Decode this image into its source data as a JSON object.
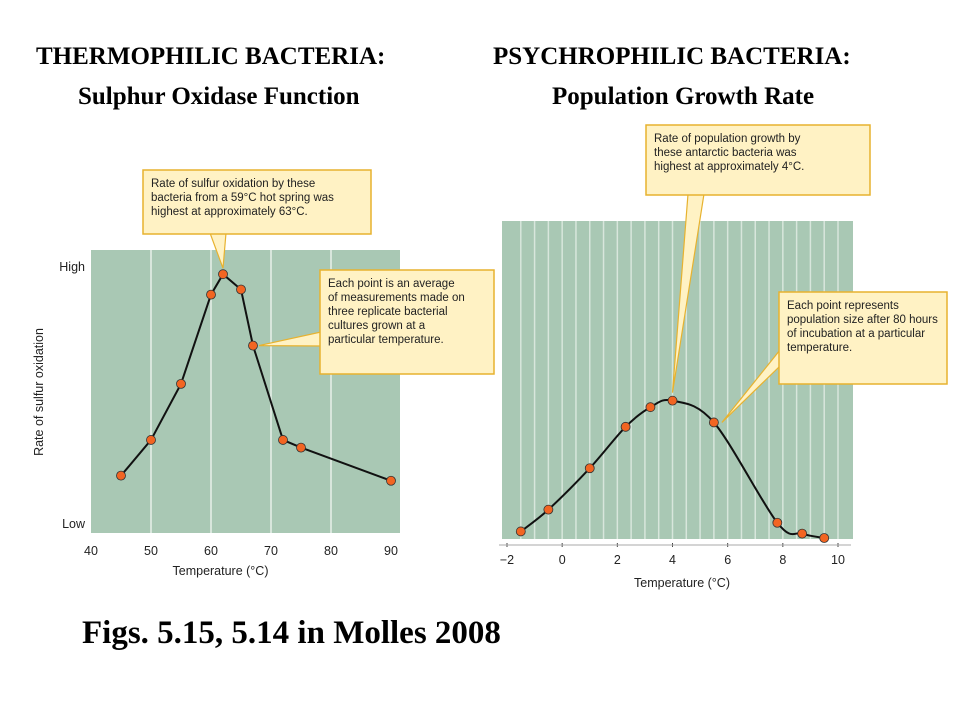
{
  "page": {
    "left_title_line1": "THERMOPHILIC BACTERIA:",
    "left_title_line2": "Sulphur Oxidase Function",
    "right_title_line1": "PSYCHROPHILIC BACTERIA:",
    "right_title_line2": "Population Growth Rate",
    "caption": "Figs. 5.15, 5.14 in Molles 2008"
  },
  "colors": {
    "plot_bg": "#a9c8b4",
    "grid": "#d8e6dc",
    "point_fill": "#f26522",
    "line": "#111111",
    "callout_bg": "#fff2c4",
    "callout_border": "#e7b22f"
  },
  "chart_data": [
    {
      "type": "line",
      "xlabel": "Temperature (°C)",
      "ylabel": "Rate of sulfur oxidation",
      "xlim": [
        40,
        90
      ],
      "x_ticks": [
        "40",
        "50",
        "60",
        "70",
        "80",
        "90"
      ],
      "y_tick_labels": [
        "Low",
        "High"
      ],
      "grid": true,
      "series": [
        {
          "values": [
            {
              "x": 45,
              "y": 0.17
            },
            {
              "x": 50,
              "y": 0.31
            },
            {
              "x": 55,
              "y": 0.53
            },
            {
              "x": 60,
              "y": 0.88
            },
            {
              "x": 62,
              "y": 0.96
            },
            {
              "x": 65,
              "y": 0.9
            },
            {
              "x": 67,
              "y": 0.68
            },
            {
              "x": 72,
              "y": 0.31
            },
            {
              "x": 75,
              "y": 0.28
            },
            {
              "x": 90,
              "y": 0.15
            }
          ]
        }
      ],
      "callouts": [
        "Rate of sulfur oxidation by these bacteria from a 59°C hot spring was highest at approximately 63°C.",
        "Each point is an average of measurements made on three replicate bacterial cultures grown at a particular temperature."
      ]
    },
    {
      "type": "line",
      "xlabel": "Temperature (°C)",
      "ylabel": "",
      "xlim": [
        -2,
        10
      ],
      "x_ticks": [
        "−2",
        "0",
        "2",
        "4",
        "6",
        "8",
        "10"
      ],
      "grid": true,
      "series": [
        {
          "values": [
            {
              "x": -1.5,
              "y": 0.03
            },
            {
              "x": -0.5,
              "y": 0.13
            },
            {
              "x": 1.0,
              "y": 0.32
            },
            {
              "x": 2.3,
              "y": 0.51
            },
            {
              "x": 3.2,
              "y": 0.6
            },
            {
              "x": 4.0,
              "y": 0.63
            },
            {
              "x": 5.5,
              "y": 0.53
            },
            {
              "x": 7.8,
              "y": 0.07
            },
            {
              "x": 8.7,
              "y": 0.02
            },
            {
              "x": 9.5,
              "y": 0.0
            }
          ]
        }
      ],
      "callouts": [
        "Rate of population growth by these antarctic bacteria was highest at approximately 4°C.",
        "Each point represents population size after 80 hours of incubation at a particular temperature."
      ]
    }
  ]
}
